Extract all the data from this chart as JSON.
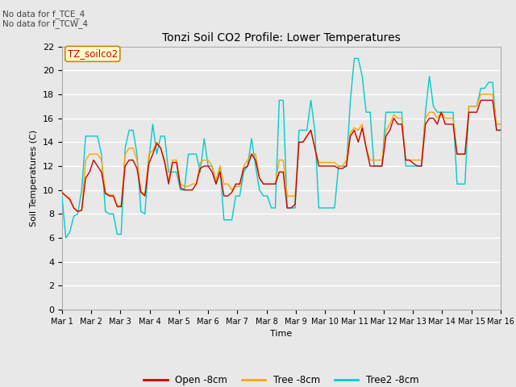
{
  "title": "Tonzi Soil CO2 Profile: Lower Temperatures",
  "xlabel": "Time",
  "ylabel": "Soil Temperatures (C)",
  "annotation_lines": [
    "No data for f_TCE_4",
    "No data for f_TCW_4"
  ],
  "legend_label": "TZ_soilco2",
  "series_labels": [
    "Open -8cm",
    "Tree -8cm",
    "Tree2 -8cm"
  ],
  "series_colors": [
    "#cc0000",
    "#ffa500",
    "#00cccc"
  ],
  "ylim": [
    0,
    22
  ],
  "yticks": [
    0,
    2,
    4,
    6,
    8,
    10,
    12,
    14,
    16,
    18,
    20,
    22
  ],
  "xtick_labels": [
    "Mar 1",
    "Mar 2",
    "Mar 3",
    "Mar 4",
    "Mar 5",
    "Mar 6",
    "Mar 7",
    "Mar 8",
    "Mar 9",
    "Mar 10",
    "Mar 11",
    "Mar 12",
    "Mar 13",
    "Mar 14",
    "Mar 15",
    "Mar 16"
  ],
  "bg_color": "#e8e8e8",
  "grid_color": "#ffffff",
  "open_8cm": [
    9.8,
    9.5,
    9.2,
    8.5,
    8.2,
    8.3,
    11.0,
    11.5,
    12.5,
    12.0,
    11.5,
    9.7,
    9.5,
    9.5,
    8.6,
    8.6,
    12.0,
    12.5,
    12.5,
    11.8,
    9.8,
    9.5,
    12.2,
    13.0,
    13.9,
    13.5,
    12.3,
    10.5,
    12.3,
    12.3,
    10.2,
    10.0,
    10.0,
    10.0,
    10.5,
    11.8,
    12.0,
    12.0,
    11.5,
    10.5,
    11.5,
    9.5,
    9.5,
    9.8,
    10.5,
    10.5,
    11.8,
    12.0,
    13.0,
    12.5,
    11.0,
    10.5,
    10.5,
    10.5,
    10.5,
    11.5,
    11.5,
    8.5,
    8.5,
    8.8,
    14.0,
    14.0,
    14.5,
    15.0,
    13.5,
    12.0,
    12.0,
    12.0,
    12.0,
    12.0,
    11.8,
    11.8,
    12.0,
    14.5,
    15.0,
    14.0,
    15.2,
    13.5,
    12.0,
    12.0,
    12.0,
    12.0,
    14.5,
    15.0,
    16.0,
    15.5,
    15.5,
    12.5,
    12.5,
    12.2,
    12.0,
    12.0,
    15.5,
    16.0,
    16.0,
    15.5,
    16.5,
    15.5,
    15.5,
    15.5,
    13.0,
    13.0,
    13.0,
    16.5,
    16.5,
    16.5,
    17.5,
    17.5,
    17.5,
    17.5,
    15.0,
    15.0
  ],
  "tree_8cm": [
    9.8,
    9.5,
    9.3,
    8.5,
    8.2,
    8.3,
    12.5,
    13.0,
    13.0,
    13.0,
    12.5,
    9.8,
    9.6,
    9.6,
    8.7,
    8.7,
    13.0,
    13.5,
    13.5,
    12.5,
    9.9,
    9.6,
    13.0,
    13.3,
    14.0,
    13.5,
    12.5,
    10.8,
    12.5,
    12.5,
    10.5,
    10.3,
    10.3,
    10.5,
    10.5,
    12.3,
    12.5,
    12.5,
    12.0,
    10.8,
    12.0,
    10.5,
    10.5,
    10.0,
    10.3,
    10.3,
    12.0,
    12.5,
    13.0,
    13.0,
    11.0,
    10.5,
    10.5,
    10.5,
    10.5,
    12.5,
    12.5,
    9.5,
    9.5,
    9.5,
    14.0,
    14.0,
    14.5,
    15.0,
    13.5,
    12.3,
    12.3,
    12.3,
    12.3,
    12.3,
    12.0,
    12.0,
    12.5,
    14.8,
    15.2,
    15.0,
    15.5,
    13.5,
    12.5,
    12.5,
    12.5,
    12.5,
    15.0,
    15.5,
    16.3,
    16.0,
    16.0,
    12.5,
    12.5,
    12.5,
    12.5,
    12.5,
    16.0,
    16.5,
    16.5,
    16.0,
    16.5,
    16.0,
    16.0,
    16.0,
    13.0,
    13.0,
    13.0,
    17.0,
    17.0,
    17.0,
    18.0,
    18.0,
    18.0,
    18.0,
    15.5,
    15.5
  ],
  "tree2_8cm": [
    9.5,
    6.0,
    6.5,
    7.8,
    8.0,
    10.0,
    14.5,
    14.5,
    14.5,
    14.5,
    13.0,
    8.2,
    8.0,
    8.0,
    6.3,
    6.3,
    13.5,
    15.0,
    15.0,
    13.0,
    8.2,
    8.0,
    12.5,
    15.5,
    13.0,
    14.5,
    14.5,
    11.5,
    11.5,
    11.5,
    10.0,
    10.0,
    13.0,
    13.0,
    13.0,
    11.5,
    14.3,
    12.0,
    12.0,
    10.5,
    12.0,
    7.5,
    7.5,
    7.5,
    9.5,
    9.5,
    11.5,
    12.0,
    14.3,
    12.0,
    10.0,
    9.5,
    9.5,
    8.5,
    8.5,
    17.5,
    17.5,
    8.5,
    8.5,
    8.5,
    15.0,
    15.0,
    15.0,
    17.5,
    15.0,
    8.5,
    8.5,
    8.5,
    8.5,
    8.5,
    12.0,
    12.0,
    12.0,
    17.5,
    21.0,
    21.0,
    19.5,
    16.5,
    16.5,
    12.0,
    12.0,
    12.0,
    16.5,
    16.5,
    16.5,
    16.5,
    16.5,
    12.0,
    12.0,
    12.0,
    12.0,
    12.0,
    16.5,
    19.5,
    17.0,
    16.5,
    16.5,
    16.5,
    16.5,
    16.5,
    10.5,
    10.5,
    10.5,
    17.0,
    17.0,
    17.0,
    18.5,
    18.5,
    19.0,
    19.0,
    15.0,
    15.0
  ]
}
